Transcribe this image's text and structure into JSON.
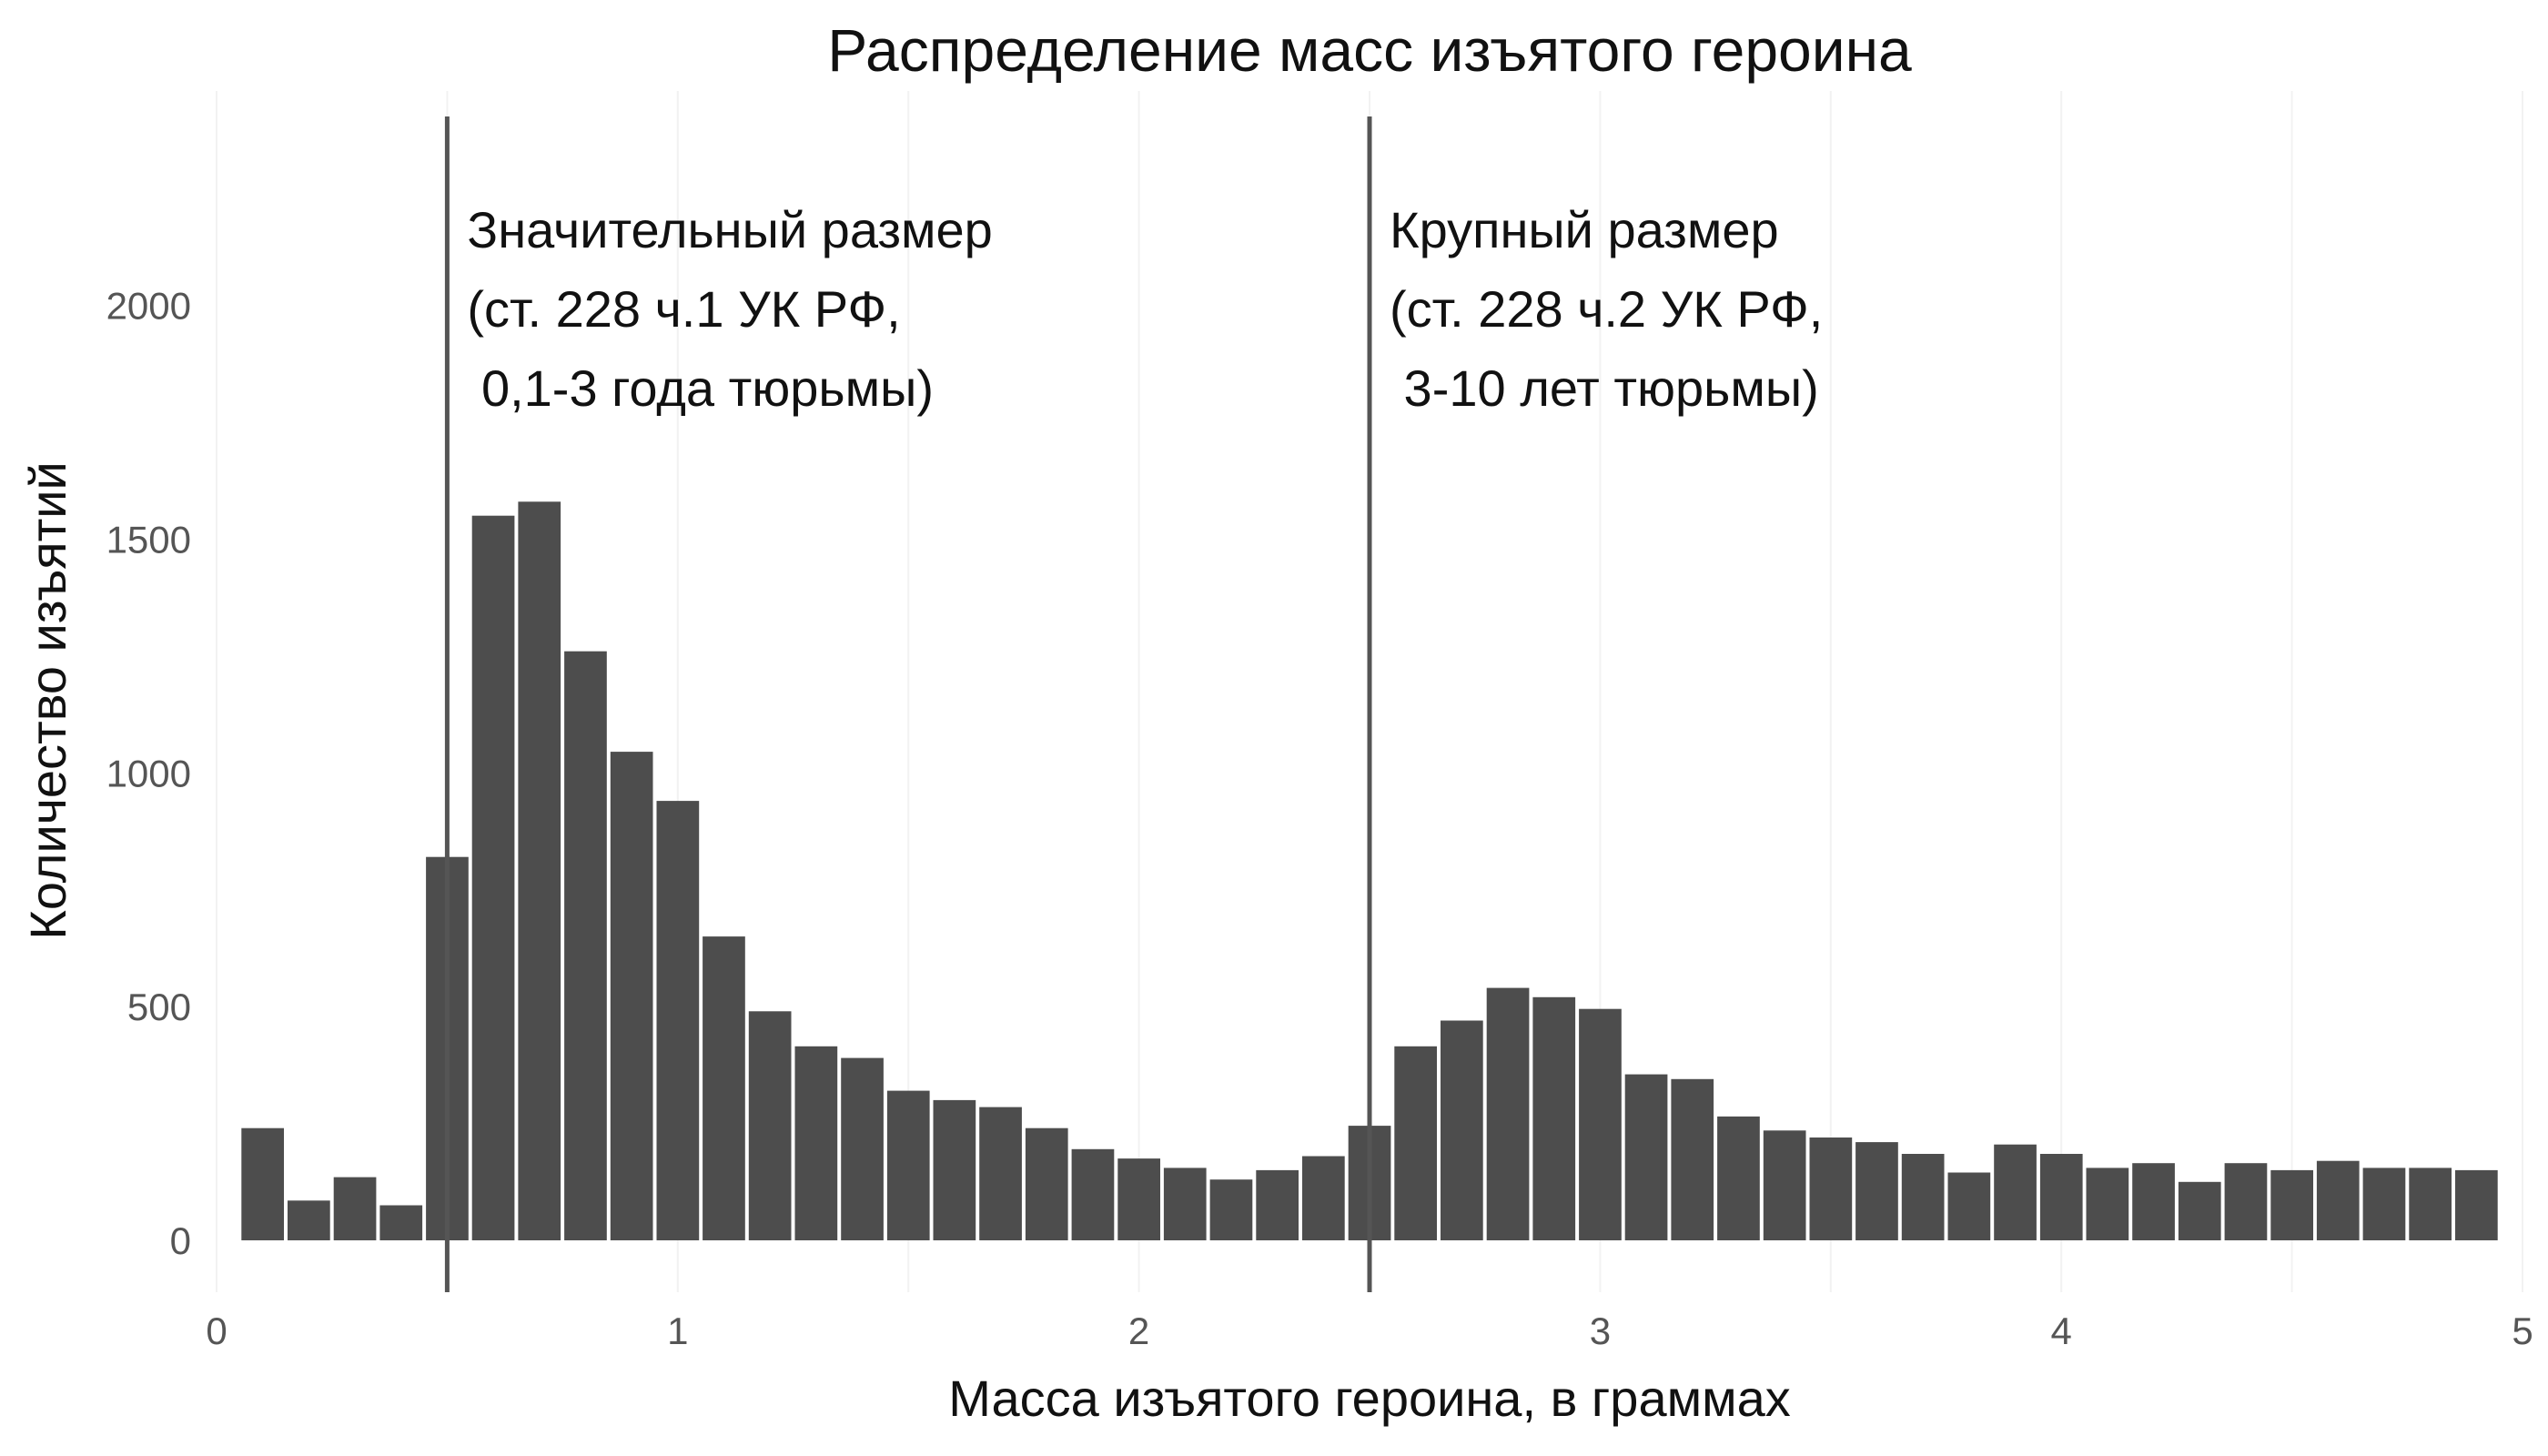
{
  "chart_data": {
    "type": "bar",
    "title": "Распределение масс изъятого героина",
    "xlabel": "Масса изъятого героина, в граммах",
    "ylabel": "Количество изъятий",
    "xlim": [
      0,
      5
    ],
    "ylim": [
      0,
      2400
    ],
    "x_ticks": [
      "0",
      "1",
      "2",
      "3",
      "4",
      "5"
    ],
    "y_ticks": [
      "0",
      "500",
      "1000",
      "1500",
      "2000"
    ],
    "grid": true,
    "bin_width": 0.1,
    "x": [
      0.1,
      0.2,
      0.3,
      0.4,
      0.5,
      0.6,
      0.7,
      0.8,
      0.9,
      1.0,
      1.1,
      1.2,
      1.3,
      1.4,
      1.5,
      1.6,
      1.7,
      1.8,
      1.9,
      2.0,
      2.1,
      2.2,
      2.3,
      2.4,
      2.5,
      2.6,
      2.7,
      2.8,
      2.9,
      3.0,
      3.1,
      3.2,
      3.3,
      3.4,
      3.5,
      3.6,
      3.7,
      3.8,
      3.9,
      4.0,
      4.1,
      4.2,
      4.3,
      4.4,
      4.5,
      4.6,
      4.7,
      4.8,
      4.9
    ],
    "values": [
      240,
      85,
      135,
      75,
      820,
      1550,
      1580,
      1260,
      1045,
      940,
      650,
      490,
      415,
      390,
      320,
      300,
      285,
      240,
      195,
      175,
      155,
      130,
      150,
      180,
      245,
      415,
      470,
      540,
      520,
      495,
      355,
      345,
      265,
      235,
      220,
      210,
      185,
      145,
      205,
      185,
      155,
      165,
      125,
      165,
      150,
      170,
      155,
      155,
      150
    ],
    "reference_lines": [
      {
        "x": 0.5,
        "label_lines": [
          "Значительный размер",
          "(ст. 228 ч.1 УК РФ,",
          " 0,1-3 года тюрьмы)"
        ]
      },
      {
        "x": 2.5,
        "label_lines": [
          "Крупный размер",
          "(ст. 228 ч.2 УК РФ,",
          " 3-10 лет тюрьмы)"
        ]
      }
    ],
    "colors": {
      "bar": "#4d4d4d",
      "line": "#555555"
    }
  }
}
